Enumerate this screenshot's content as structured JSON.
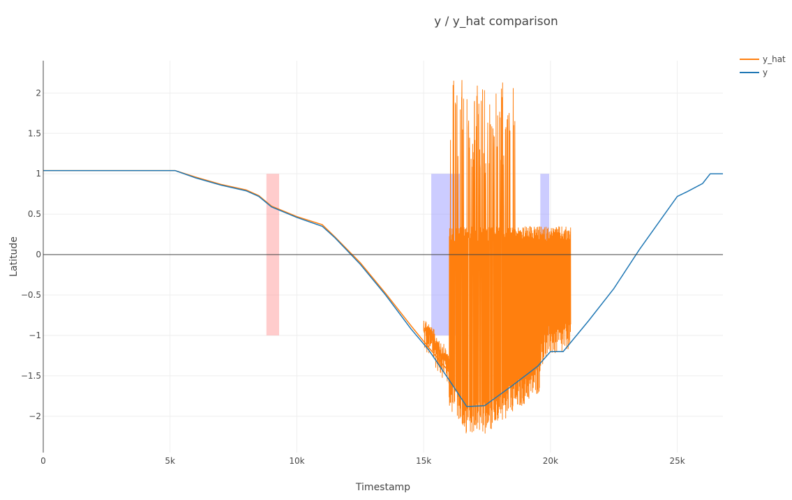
{
  "chart_data": {
    "type": "line",
    "title": "y / y_hat comparison",
    "xlabel": "Timestamp",
    "ylabel": "Latitude",
    "xlim": [
      0,
      26800
    ],
    "ylim": [
      -2.45,
      2.4
    ],
    "grid": true,
    "legend_position": "top-right",
    "x_ticks": [
      {
        "value": 0,
        "label": "0"
      },
      {
        "value": 5000,
        "label": "5k"
      },
      {
        "value": 10000,
        "label": "10k"
      },
      {
        "value": 15000,
        "label": "15k"
      },
      {
        "value": 20000,
        "label": "20k"
      },
      {
        "value": 25000,
        "label": "25k"
      }
    ],
    "y_ticks": [
      {
        "value": 2,
        "label": "2"
      },
      {
        "value": 1.5,
        "label": "1.5"
      },
      {
        "value": 1,
        "label": "1"
      },
      {
        "value": 0.5,
        "label": "0.5"
      },
      {
        "value": 0,
        "label": "0"
      },
      {
        "value": -0.5,
        "label": "−0.5"
      },
      {
        "value": -1,
        "label": "−1"
      },
      {
        "value": -1.5,
        "label": "−1.5"
      },
      {
        "value": -2,
        "label": "−2"
      }
    ],
    "series": [
      {
        "name": "y_hat",
        "color": "#ff7f0e",
        "x": [
          0,
          2000,
          5200,
          6000,
          7000,
          8000,
          8500,
          9000,
          10000,
          11000,
          11500,
          12500,
          13500,
          14500,
          15200,
          16000
        ],
        "values": [
          1.04,
          1.04,
          1.04,
          0.96,
          0.87,
          0.8,
          0.73,
          0.6,
          0.47,
          0.37,
          0.22,
          -0.1,
          -0.48,
          -0.88,
          -1.15,
          -1.45
        ]
      },
      {
        "name": "y",
        "color": "#1f77b4",
        "x": [
          0,
          2000,
          5200,
          6000,
          7000,
          8000,
          8500,
          9000,
          10000,
          11000,
          11500,
          12500,
          13500,
          14500,
          15200,
          16000,
          16700,
          17400,
          18500,
          19500,
          20000,
          20500,
          21500,
          22500,
          23500,
          24500,
          25000,
          25400,
          26000,
          26300,
          26800
        ],
        "values": [
          1.04,
          1.04,
          1.04,
          0.95,
          0.86,
          0.79,
          0.72,
          0.59,
          0.46,
          0.35,
          0.21,
          -0.12,
          -0.5,
          -0.92,
          -1.18,
          -1.55,
          -1.88,
          -1.87,
          -1.62,
          -1.38,
          -1.2,
          -1.2,
          -0.82,
          -0.42,
          0.06,
          0.5,
          0.72,
          0.78,
          0.88,
          1.0,
          1.0
        ]
      }
    ],
    "y_hat_noise": {
      "x_range": [
        15000,
        20800
      ],
      "y_min": -2.25,
      "y_max": 2.18
    },
    "shaded_regions": [
      {
        "x0": 8800,
        "x1": 9300,
        "y0": -1,
        "y1": 1,
        "color": "#ff9999"
      },
      {
        "x0": 15300,
        "x1": 16450,
        "y0": -1,
        "y1": 1,
        "color": "#9999ff"
      },
      {
        "x0": 19600,
        "x1": 19950,
        "y0": -1,
        "y1": 1,
        "color": "#9999ff"
      }
    ]
  }
}
